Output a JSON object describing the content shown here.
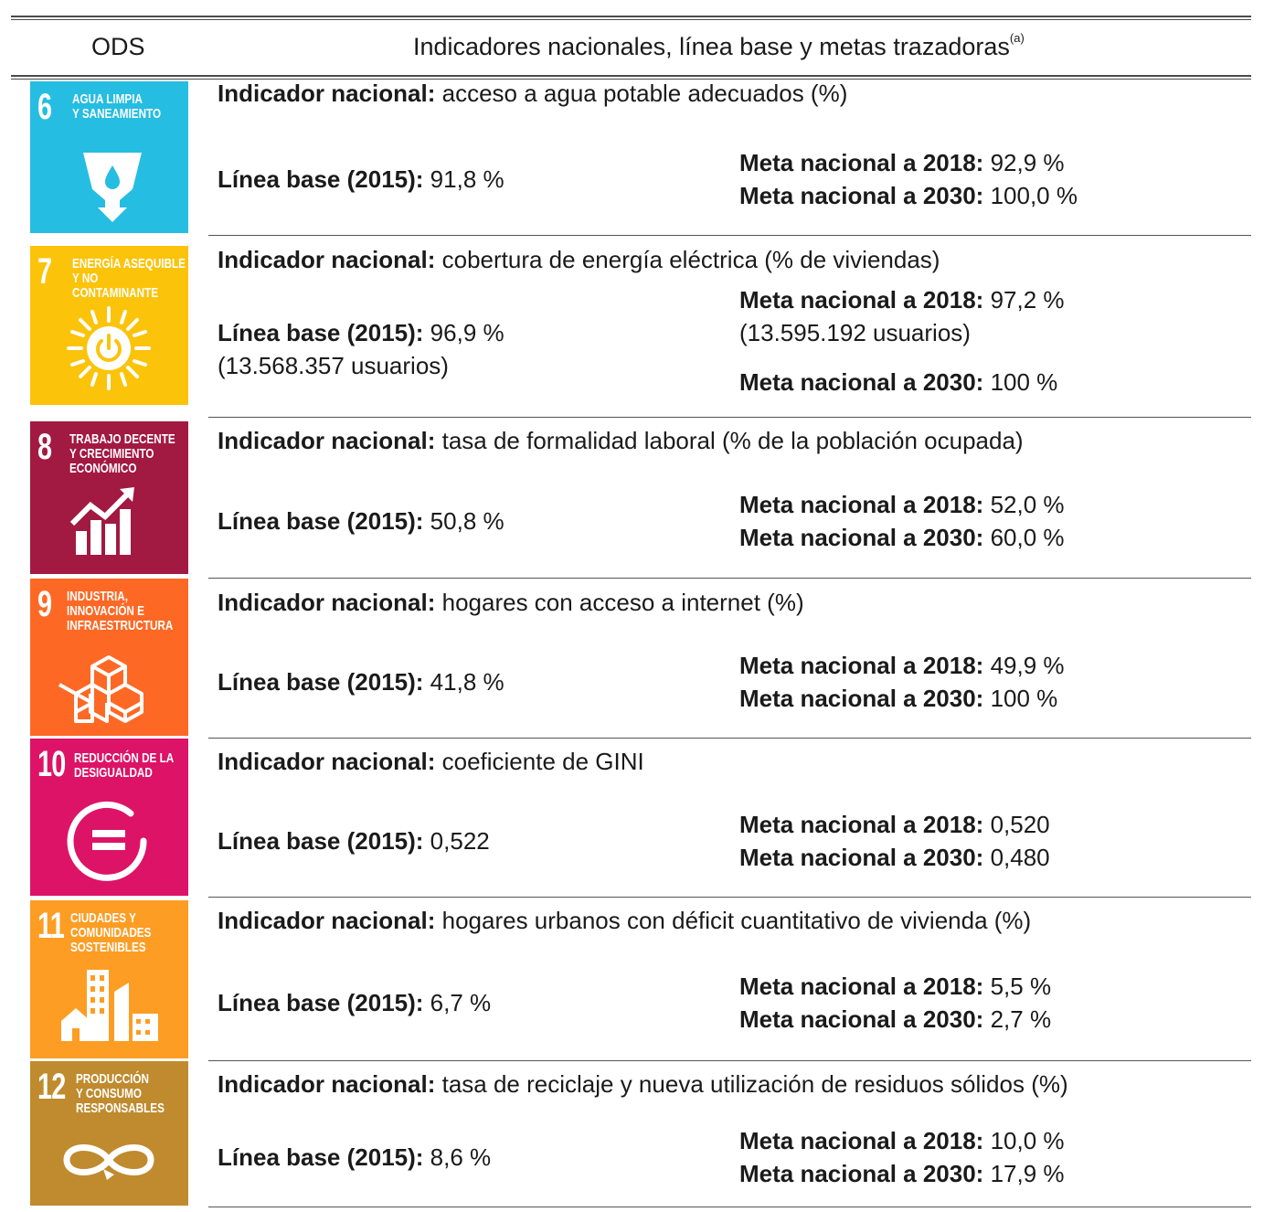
{
  "header": {
    "col_ods": "ODS",
    "col_indicators": "Indicadores nacionales, línea base y metas trazadoras",
    "col_indicators_sup": "(a)"
  },
  "labels": {
    "indicator": "Indicador nacional:",
    "baseline": "Línea base (2015):",
    "target_2018": "Meta nacional a 2018:",
    "target_2030": "Meta nacional a 2030:"
  },
  "rows": [
    {
      "goal_number": "6",
      "goal_name": "Agua limpia\ny saneamiento",
      "color": "#26BDE2",
      "icon": "water-icon",
      "indicator": "acceso a agua potable adecuados (%)",
      "baseline": "91,8 %",
      "baseline_extra": "",
      "target_2018": "92,9 %",
      "target_2018_extra": "",
      "target_2030": "100,0 %"
    },
    {
      "goal_number": "7",
      "goal_name": "Energía asequible\ny no contaminante",
      "color": "#FCC30B",
      "icon": "sun-power-icon",
      "indicator": "cobertura de energía eléctrica (% de viviendas)",
      "baseline": "96,9 %",
      "baseline_extra": "(13.568.357 usuarios)",
      "target_2018": "97,2 %",
      "target_2018_extra": "(13.595.192 usuarios)",
      "target_2030": "100 %"
    },
    {
      "goal_number": "8",
      "goal_name": "Trabajo decente\ny crecimiento\neconómico",
      "color": "#A21942",
      "icon": "growth-chart-icon",
      "indicator": "tasa de formalidad laboral (% de la población ocupada)",
      "baseline": "50,8 %",
      "baseline_extra": "",
      "target_2018": "52,0 %",
      "target_2018_extra": "",
      "target_2030": "60,0 %"
    },
    {
      "goal_number": "9",
      "goal_name": "Industria,\ninnovación e\ninfraestructura",
      "color": "#FD6925",
      "icon": "cubes-icon",
      "indicator": "hogares con acceso a internet (%)",
      "baseline": "41,8 %",
      "baseline_extra": "",
      "target_2018": "49,9 %",
      "target_2018_extra": "",
      "target_2030": "100 %"
    },
    {
      "goal_number": "10",
      "goal_name": "Reducción de la\ndesigualdad",
      "color": "#DD1367",
      "icon": "equality-icon",
      "indicator": "coeficiente de GINI",
      "baseline": "0,522",
      "baseline_extra": "",
      "target_2018": "0,520",
      "target_2018_extra": "",
      "target_2030": "0,480"
    },
    {
      "goal_number": "11",
      "goal_name": "Ciudades y\ncomunidades\nsostenibles",
      "color": "#FD9D24",
      "icon": "city-icon",
      "indicator": "hogares urbanos con déficit cuantitativo de vivienda (%)",
      "baseline": "6,7 %",
      "baseline_extra": "",
      "target_2018": "5,5 %",
      "target_2018_extra": "",
      "target_2030": "2,7 %"
    },
    {
      "goal_number": "12",
      "goal_name": "Producción\ny consumo\nresponsables",
      "color": "#BF8B2E",
      "icon": "infinity-icon",
      "indicator": "tasa de reciclaje y nueva utilización de residuos sólidos (%)",
      "baseline": "8,6 %",
      "baseline_extra": "",
      "target_2018": "10,0 %",
      "target_2018_extra": "",
      "target_2030": "17,9 %"
    }
  ]
}
